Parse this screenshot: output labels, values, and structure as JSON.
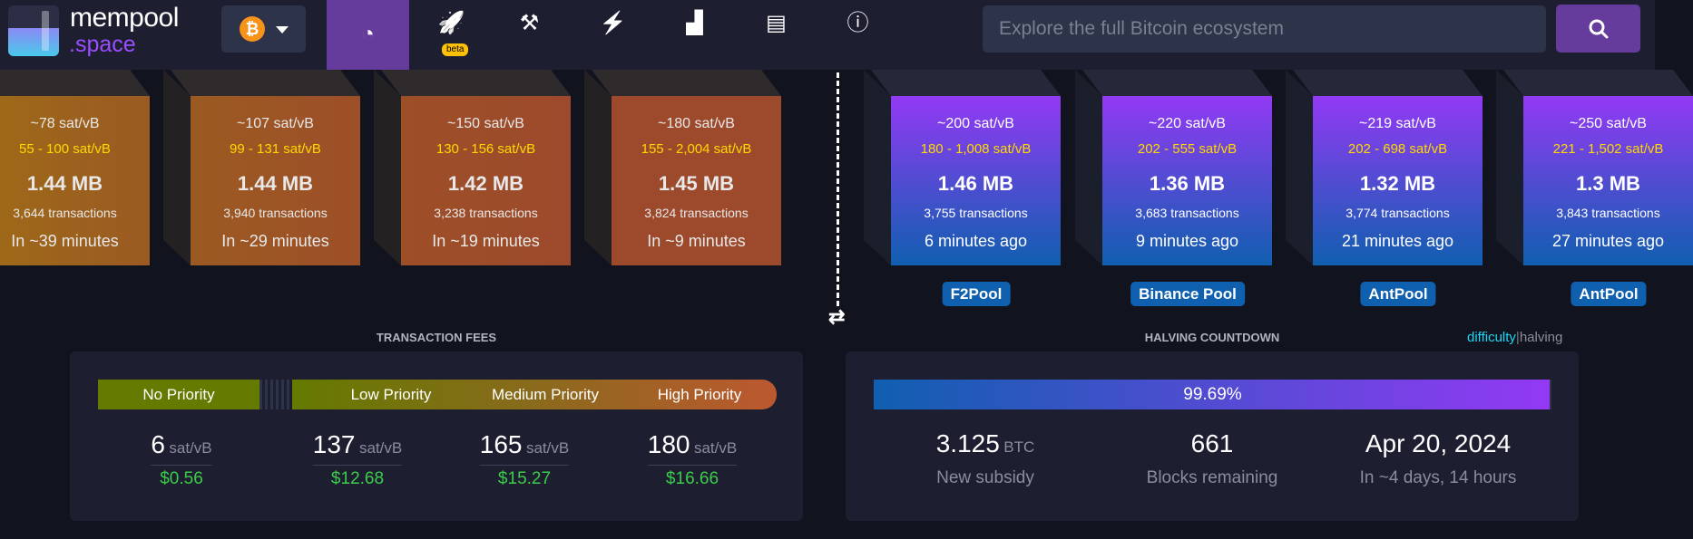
{
  "header": {
    "logo_line1": "mempool",
    "logo_line2": ".space",
    "network_icon": "bitcoin-icon",
    "beta_badge": "beta",
    "nav": [
      {
        "icon": "dashboard-icon",
        "glyph": "◔",
        "active": true
      },
      {
        "icon": "rocket-icon",
        "glyph": "🚀"
      },
      {
        "icon": "hammer-icon",
        "glyph": "⚒"
      },
      {
        "icon": "lightning-icon",
        "glyph": "⚡"
      },
      {
        "icon": "chart-icon",
        "glyph": "▟"
      },
      {
        "icon": "book-icon",
        "glyph": "▤"
      },
      {
        "icon": "info-icon",
        "glyph": "ⓘ"
      }
    ],
    "search_placeholder": "Explore the full Bitcoin ecosystem"
  },
  "mempool_blocks": [
    {
      "median": "~78 sat/vB",
      "range": "55 - 100 sat/vB",
      "size": "1.44 MB",
      "tx": "3,644 transactions",
      "eta": "In ~39 minutes",
      "color": "#9e6a18"
    },
    {
      "median": "~107 sat/vB",
      "range": "99 - 131 sat/vB",
      "size": "1.44 MB",
      "tx": "3,940 transactions",
      "eta": "In ~29 minutes",
      "color": "#9b5a22"
    },
    {
      "median": "~150 sat/vB",
      "range": "130 - 156 sat/vB",
      "size": "1.42 MB",
      "tx": "3,238 transactions",
      "eta": "In ~19 minutes",
      "color": "#9d4f28"
    },
    {
      "median": "~180 sat/vB",
      "range": "155 - 2,004 sat/vB",
      "size": "1.45 MB",
      "tx": "3,824 transactions",
      "eta": "In ~9 minutes",
      "color": "#9d4a2c"
    }
  ],
  "mined_blocks": [
    {
      "median": "~200 sat/vB",
      "range": "180 - 1,008 sat/vB",
      "size": "1.46 MB",
      "tx": "3,755 transactions",
      "age": "6 minutes ago",
      "pool": "F2Pool"
    },
    {
      "median": "~220 sat/vB",
      "range": "202 - 555 sat/vB",
      "size": "1.36 MB",
      "tx": "3,683 transactions",
      "age": "9 minutes ago",
      "pool": "Binance Pool"
    },
    {
      "median": "~219 sat/vB",
      "range": "202 - 698 sat/vB",
      "size": "1.32 MB",
      "tx": "3,774 transactions",
      "age": "21 minutes ago",
      "pool": "AntPool"
    },
    {
      "median": "~250 sat/vB",
      "range": "221 - 1,502 sat/vB",
      "size": "1.3 MB",
      "tx": "3,843 transactions",
      "age": "27 minutes ago",
      "pool": "AntPool"
    }
  ],
  "fees": {
    "title": "TRANSACTION FEES",
    "labels": [
      "No Priority",
      "Low Priority",
      "Medium Priority",
      "High Priority"
    ],
    "values": [
      {
        "fee": "6",
        "unit": "sat/vB",
        "usd": "$0.56"
      },
      {
        "fee": "137",
        "unit": "sat/vB",
        "usd": "$12.68"
      },
      {
        "fee": "165",
        "unit": "sat/vB",
        "usd": "$15.27"
      },
      {
        "fee": "180",
        "unit": "sat/vB",
        "usd": "$16.66"
      }
    ]
  },
  "halving": {
    "title": "HALVING COUNTDOWN",
    "toggle_difficulty": "difficulty",
    "toggle_sep": "|",
    "toggle_halving": "halving",
    "progress": "99.69%",
    "progress_fraction": 0.9969,
    "stats": [
      {
        "value": "3.125",
        "unit": "BTC",
        "label": "New subsidy"
      },
      {
        "value": "661",
        "unit": "",
        "label": "Blocks remaining"
      },
      {
        "value": "Apr 20, 2024",
        "unit": "",
        "label": "In ~4 days, 14 hours"
      }
    ]
  }
}
